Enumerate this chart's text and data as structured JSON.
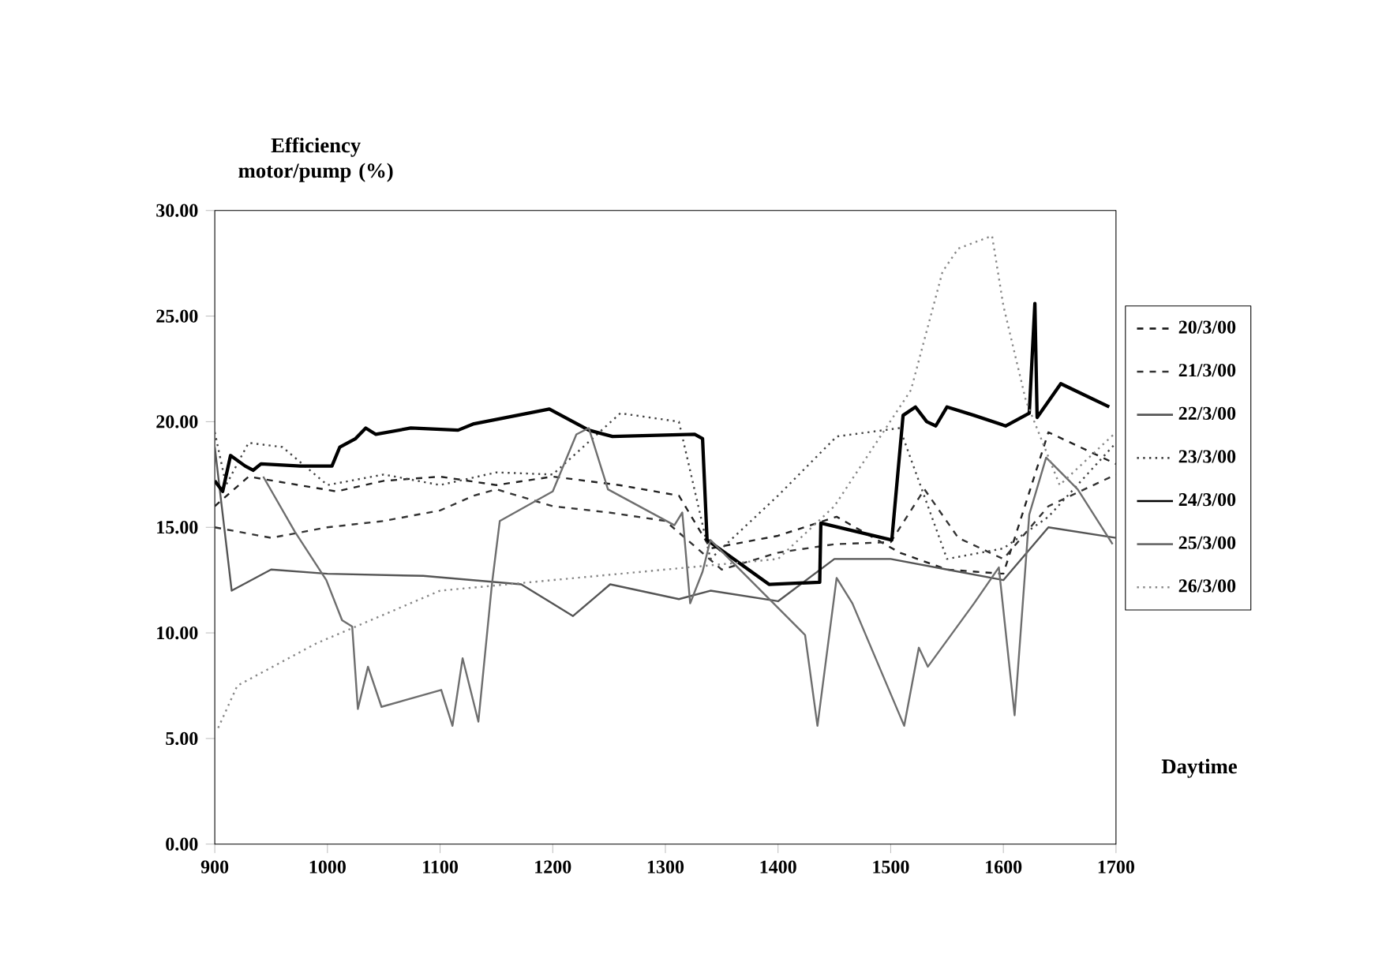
{
  "chart_data": {
    "type": "line",
    "ylabel": "Efficiency motor/pump (%)",
    "xlabel": "Daytime",
    "xlim": [
      900,
      1700
    ],
    "ylim": [
      0,
      30
    ],
    "xticks": [
      900,
      1000,
      1100,
      1200,
      1300,
      1400,
      1500,
      1600,
      1700
    ],
    "yticks": [
      {
        "value": 0,
        "label": "0.00"
      },
      {
        "value": 5,
        "label": "5.00"
      },
      {
        "value": 10,
        "label": "10.00"
      },
      {
        "value": 15,
        "label": "15.00"
      },
      {
        "value": 20,
        "label": "20.00"
      },
      {
        "value": 25,
        "label": "25.00"
      },
      {
        "value": 30,
        "label": "30.00"
      }
    ],
    "grid": false,
    "legend": "right",
    "marker": "none",
    "series": [
      {
        "name": "20/3/00",
        "color": "#222222",
        "line_style": "dashed",
        "x": [
          900,
          930,
          1008,
          1050,
          1100,
          1150,
          1200,
          1259,
          1312,
          1340,
          1400,
          1452,
          1508,
          1550,
          1600,
          1640,
          1700
        ],
        "values": [
          16.0,
          17.4,
          16.7,
          17.2,
          17.4,
          17.0,
          17.4,
          17.0,
          16.5,
          14.0,
          14.6,
          15.5,
          13.8,
          13.0,
          12.8,
          19.5,
          18.0
        ]
      },
      {
        "name": "21/3/00",
        "color": "#333333",
        "line_style": "dashed",
        "x": [
          900,
          950,
          1000,
          1050,
          1100,
          1130,
          1150,
          1200,
          1250,
          1300,
          1350,
          1400,
          1450,
          1500,
          1530,
          1560,
          1600,
          1640,
          1700
        ],
        "values": [
          15.0,
          14.5,
          15.0,
          15.3,
          15.8,
          16.5,
          16.8,
          16.0,
          15.7,
          15.3,
          13.0,
          13.8,
          14.2,
          14.3,
          16.8,
          14.5,
          13.5,
          16.0,
          17.5
        ]
      },
      {
        "name": "22/3/00",
        "color": "#555555",
        "line_style": "solid",
        "x": [
          900,
          915,
          950,
          1000,
          1085,
          1172,
          1218,
          1251,
          1312,
          1340,
          1400,
          1450,
          1500,
          1550,
          1600,
          1640,
          1700
        ],
        "values": [
          18.8,
          12.0,
          13.0,
          12.8,
          12.7,
          12.3,
          10.8,
          12.3,
          11.6,
          12.0,
          11.5,
          13.5,
          13.5,
          13.0,
          12.5,
          15.0,
          14.5
        ]
      },
      {
        "name": "23/3/00",
        "color": "#444444",
        "line_style": "dotted",
        "x": [
          900,
          910,
          930,
          960,
          1000,
          1050,
          1100,
          1150,
          1200,
          1260,
          1312,
          1340,
          1400,
          1452,
          1508,
          1550,
          1600,
          1640,
          1700
        ],
        "values": [
          19.5,
          17.0,
          19.0,
          18.8,
          17.0,
          17.5,
          17.0,
          17.6,
          17.5,
          20.4,
          20.0,
          13.5,
          16.5,
          19.3,
          19.7,
          13.5,
          14.0,
          15.5,
          19.0
        ]
      },
      {
        "name": "24/3/00",
        "color": "#000000",
        "line_style": "solid",
        "x": [
          900,
          907,
          914,
          927,
          934,
          941,
          976,
          1004,
          1011,
          1025,
          1034,
          1043,
          1074,
          1116,
          1130,
          1197,
          1232,
          1253,
          1326,
          1333,
          1337,
          1392,
          1437,
          1438,
          1501,
          1511,
          1522,
          1532,
          1540,
          1550,
          1574,
          1602,
          1623,
          1628,
          1630,
          1651,
          1694
        ],
        "values": [
          17.2,
          16.7,
          18.4,
          17.9,
          17.7,
          18.0,
          17.9,
          17.9,
          18.8,
          19.2,
          19.7,
          19.4,
          19.7,
          19.6,
          19.9,
          20.6,
          19.6,
          19.3,
          19.4,
          19.2,
          14.4,
          12.3,
          12.4,
          15.2,
          14.4,
          20.3,
          20.7,
          20.0,
          19.8,
          20.7,
          20.3,
          19.8,
          20.4,
          25.6,
          20.2,
          21.8,
          20.7
        ]
      },
      {
        "name": "25/3/00",
        "color": "#6e6e6e",
        "line_style": "solid",
        "x": [
          943,
          971,
          999,
          1013,
          1022,
          1027,
          1036,
          1048,
          1101,
          1111,
          1120,
          1134,
          1146,
          1153,
          1200,
          1221,
          1232,
          1249,
          1308,
          1315,
          1322,
          1333,
          1340,
          1424,
          1435,
          1452,
          1466,
          1512,
          1525,
          1533,
          1574,
          1596,
          1610,
          1623,
          1638,
          1666,
          1697
        ],
        "values": [
          17.4,
          14.8,
          12.5,
          10.6,
          10.3,
          6.4,
          8.4,
          6.5,
          7.3,
          5.6,
          8.8,
          5.8,
          12.3,
          15.3,
          16.7,
          19.4,
          19.7,
          16.8,
          15.1,
          15.7,
          11.4,
          12.9,
          14.4,
          9.9,
          5.6,
          12.6,
          11.4,
          5.6,
          9.3,
          8.4,
          11.4,
          13.1,
          6.1,
          15.6,
          18.3,
          16.8,
          14.2
        ]
      },
      {
        "name": "26/3/00",
        "color": "#888888",
        "line_style": "dotted",
        "x": [
          903,
          920,
          990,
          1100,
          1200,
          1300,
          1400,
          1450,
          1518,
          1546,
          1560,
          1590,
          1600,
          1620,
          1650,
          1700
        ],
        "values": [
          5.5,
          7.5,
          9.5,
          12.0,
          12.5,
          13.0,
          13.5,
          16.0,
          21.5,
          27.1,
          28.2,
          28.8,
          25.5,
          21.0,
          17.0,
          19.5
        ]
      }
    ]
  }
}
